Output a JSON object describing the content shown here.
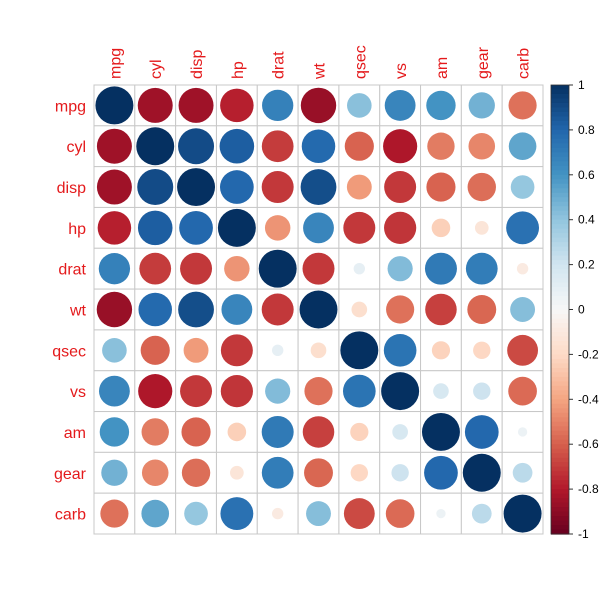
{
  "chart_data": {
    "type": "heatmap",
    "style": "corrplot-circle",
    "variables": [
      "mpg",
      "cyl",
      "disp",
      "hp",
      "drat",
      "wt",
      "qsec",
      "vs",
      "am",
      "gear",
      "carb"
    ],
    "matrix": [
      [
        1,
        -0.85,
        -0.85,
        -0.78,
        0.68,
        -0.87,
        0.42,
        0.66,
        0.6,
        0.48,
        -0.55
      ],
      [
        -0.85,
        1,
        0.9,
        0.83,
        -0.7,
        0.78,
        -0.59,
        -0.81,
        -0.52,
        -0.49,
        0.53
      ],
      [
        -0.85,
        0.9,
        1,
        0.79,
        -0.71,
        0.89,
        -0.43,
        -0.71,
        -0.59,
        -0.56,
        0.39
      ],
      [
        -0.78,
        0.83,
        0.79,
        1,
        -0.45,
        0.66,
        -0.71,
        -0.72,
        -0.24,
        -0.13,
        0.75
      ],
      [
        0.68,
        -0.7,
        -0.71,
        -0.45,
        1,
        -0.71,
        0.09,
        0.44,
        0.71,
        0.7,
        -0.09
      ],
      [
        -0.87,
        0.78,
        0.89,
        0.66,
        -0.71,
        1,
        -0.17,
        -0.55,
        -0.69,
        -0.58,
        0.43
      ],
      [
        0.42,
        -0.59,
        -0.43,
        -0.71,
        0.09,
        -0.17,
        1,
        0.74,
        -0.23,
        -0.21,
        -0.66
      ],
      [
        0.66,
        -0.81,
        -0.71,
        -0.72,
        0.44,
        -0.55,
        0.74,
        1,
        0.17,
        0.21,
        -0.57
      ],
      [
        0.6,
        -0.52,
        -0.59,
        -0.24,
        0.71,
        -0.69,
        -0.23,
        0.17,
        1,
        0.79,
        0.06
      ],
      [
        0.48,
        -0.49,
        -0.56,
        -0.13,
        0.7,
        -0.58,
        -0.21,
        0.21,
        0.79,
        1,
        0.27
      ],
      [
        -0.55,
        0.53,
        0.39,
        0.75,
        -0.09,
        0.43,
        -0.66,
        -0.57,
        0.06,
        0.27,
        1
      ]
    ],
    "colorbar": {
      "range": [
        -1,
        1
      ],
      "tick_labels": [
        "1",
        "0.8",
        "0.6",
        "0.4",
        "0.2",
        "0",
        "-0.2",
        "-0.4",
        "-0.6",
        "-0.8",
        "-1"
      ],
      "palette": [
        "#67001F",
        "#B2182B",
        "#D6604D",
        "#F4A582",
        "#FDDBC7",
        "#F7F7F7",
        "#D1E5F0",
        "#92C5DE",
        "#4393C3",
        "#2166AC",
        "#053061"
      ]
    },
    "label_color": "#E41A1C",
    "grid": true
  }
}
